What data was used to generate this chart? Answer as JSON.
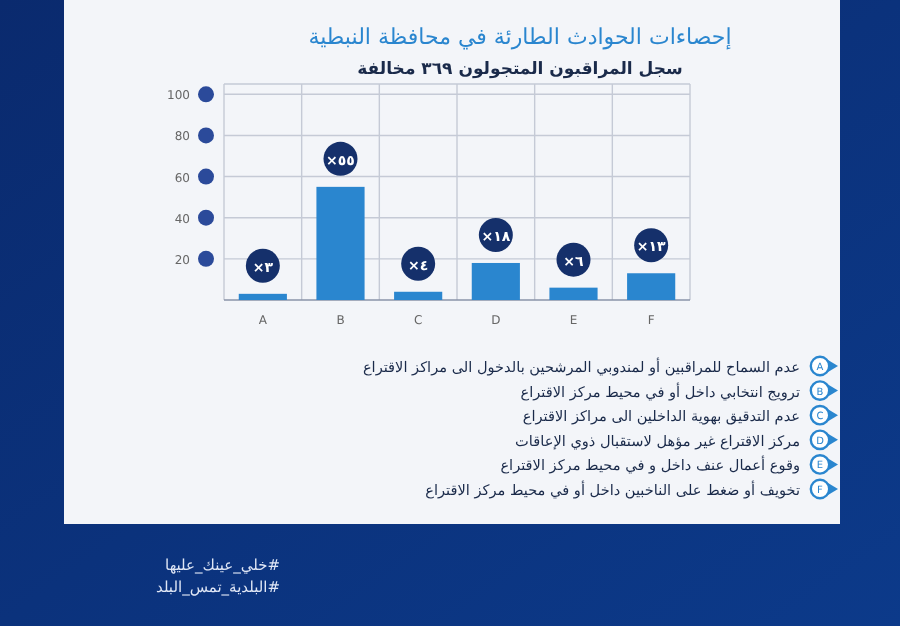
{
  "chart_data": {
    "type": "bar",
    "title": "إحصاءات الحوادث الطارئة في محافظة النبطية",
    "subtitle": "سجل المراقبون المتجولون ٣٦٩ مخالفة",
    "categories": [
      "A",
      "B",
      "C",
      "D",
      "E",
      "F"
    ],
    "values": [
      3,
      55,
      4,
      18,
      6,
      13
    ],
    "value_labels": [
      "×٣",
      "×٥٥",
      "×٤",
      "×١٨",
      "×٦",
      "×١٣"
    ],
    "color": "#2a86cf",
    "ylim": [
      0,
      105
    ],
    "yticks": [
      20,
      40,
      60,
      80,
      100
    ],
    "grid": true,
    "annotations": [
      "عدم السماح للمراقبين أو لمندوبي المرشحين بالدخول الى مراكز الاقتراع",
      "ترويج انتخابي داخل أو في محيط مركز الاقتراع",
      "عدم التدقيق بهوية الداخلين الى مراكز الاقتراع",
      "مركز الاقتراع غير مؤهل لاستقبال ذوي الإعاقات",
      "وقوع أعمال عنف داخل و في محيط مركز الاقتراع",
      "تخويف أو ضغط على الناخبين داخل أو في محيط مركز الاقتراع",
      "#خلي_عينك_عليها",
      "#البلدية_تمس_البلد"
    ]
  }
}
